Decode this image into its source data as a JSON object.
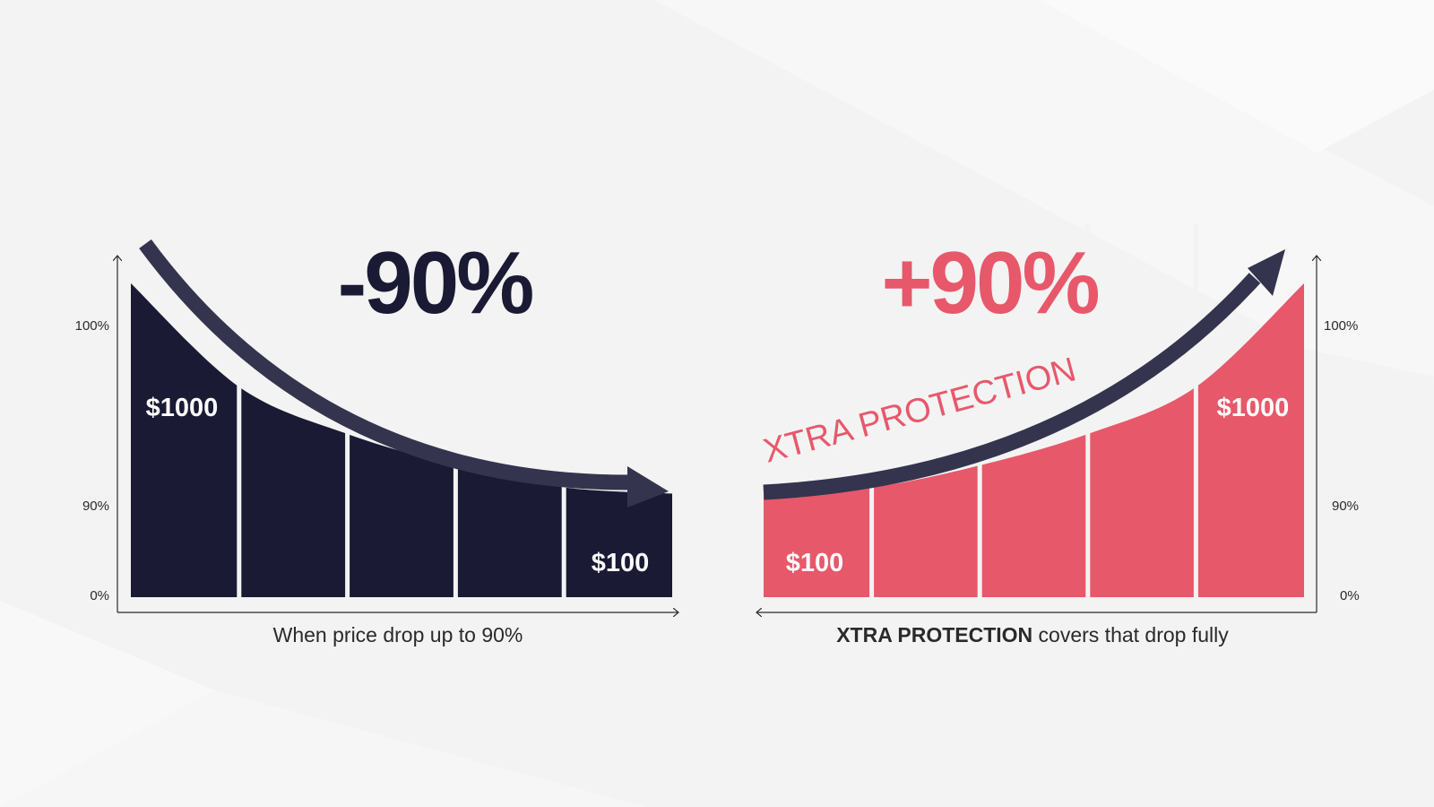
{
  "colors": {
    "navy": "#1b1a35",
    "arrow_navy": "#34344f",
    "coral": "#e8586b",
    "axis": "#2a2a2a",
    "text": "#2a2a2a",
    "bg": "#f3f3f3"
  },
  "chart_data": [
    {
      "type": "area",
      "headline": "-90%",
      "caption": "When price drop up to 90%",
      "y_ticks": [
        "100%",
        "90%",
        "0%"
      ],
      "segments": 5,
      "curve": [
        100,
        67,
        52,
        42,
        35,
        33
      ],
      "labels": {
        "start": "$1000",
        "end": "$100"
      }
    },
    {
      "type": "area",
      "headline": "+90%",
      "overlay_text": "XTRA PROTECTION",
      "caption_bold": "XTRA PROTECTION",
      "caption_rest": " covers that drop fully",
      "y_ticks": [
        "100%",
        "90%",
        "0%"
      ],
      "segments": 5,
      "curve": [
        33,
        35,
        42,
        52,
        67,
        100
      ],
      "labels": {
        "start": "$100",
        "end": "$1000"
      }
    }
  ]
}
